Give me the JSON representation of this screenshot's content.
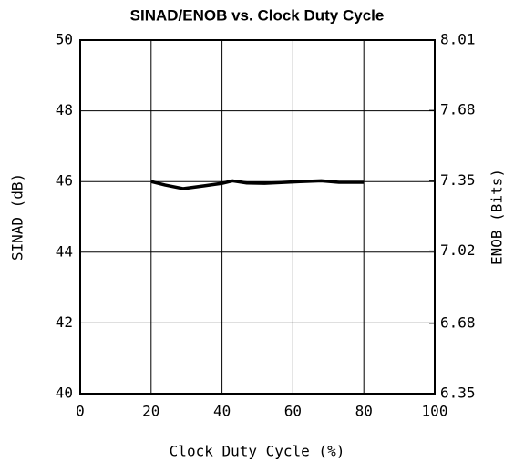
{
  "chart_data": {
    "type": "line",
    "title": "SINAD/ENOB vs. Clock Duty Cycle",
    "xlabel": "Clock Duty Cycle (%)",
    "ylabel": "SINAD (dB)",
    "y2label": "ENOB (Bits)",
    "x": [
      20,
      24,
      29,
      35,
      40,
      43,
      47,
      52,
      58,
      62,
      68,
      73,
      80
    ],
    "values": [
      46.0,
      45.9,
      45.8,
      45.88,
      45.95,
      46.02,
      45.96,
      45.95,
      45.98,
      46.0,
      46.02,
      45.98,
      45.98
    ],
    "color": "#000000",
    "xlim": [
      0,
      100
    ],
    "xticks": [
      0,
      20,
      40,
      60,
      80,
      100
    ],
    "ylim": [
      40,
      50
    ],
    "yticks": [
      40,
      42,
      44,
      46,
      48,
      50
    ],
    "y2lim": [
      6.35,
      8.01
    ],
    "y2ticks": [
      6.35,
      6.68,
      7.02,
      7.35,
      7.68,
      8.01
    ],
    "grid": true
  }
}
